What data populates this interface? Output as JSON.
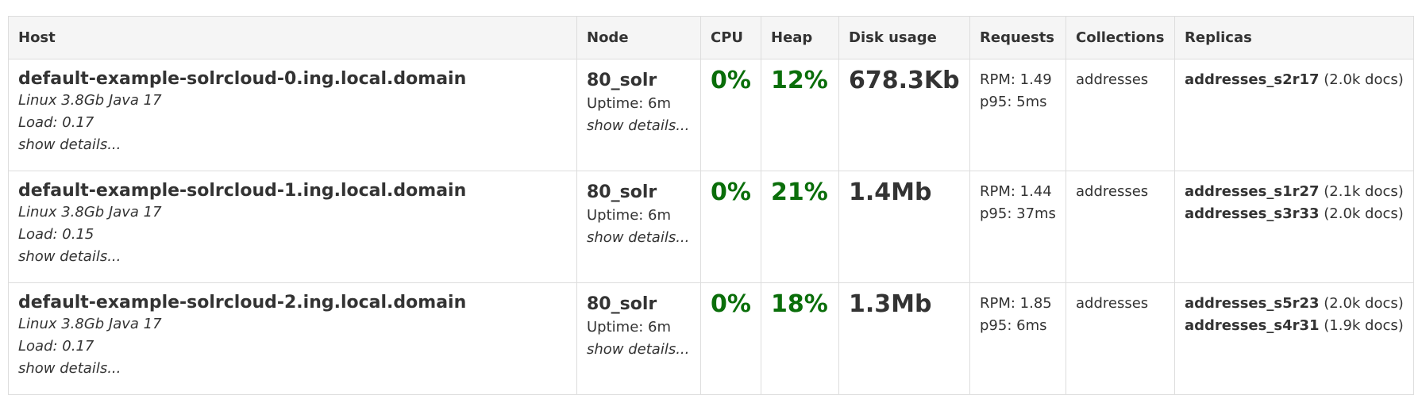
{
  "table": {
    "header": [
      "Host",
      "Node",
      "CPU",
      "Heap",
      "Disk usage",
      "Requests",
      "Collections",
      "Replicas"
    ],
    "rows": [
      {
        "host": "default-example-solrcloud-0.ing.local.domain",
        "host_info": "Linux 3.8Gb Java 17",
        "load": "Load: 0.17",
        "host_details": "show details...",
        "node": "80_solr",
        "uptime": "Uptime: 6m",
        "node_details": "show details...",
        "cpu": "0%",
        "heap": "12%",
        "disk": "678.3Kb",
        "rpm": "RPM: 1.49",
        "p95": "p95: 5ms",
        "collections": "addresses",
        "replicas": [
          {
            "name": "addresses_s2r17",
            "docs": "(2.0k docs)"
          }
        ]
      },
      {
        "host": "default-example-solrcloud-1.ing.local.domain",
        "host_info": "Linux 3.8Gb Java 17",
        "load": "Load: 0.15",
        "host_details": "show details...",
        "node": "80_solr",
        "uptime": "Uptime: 6m",
        "node_details": "show details...",
        "cpu": "0%",
        "heap": "21%",
        "disk": "1.4Mb",
        "rpm": "RPM: 1.44",
        "p95": "p95: 37ms",
        "collections": "addresses",
        "replicas": [
          {
            "name": "addresses_s1r27",
            "docs": "(2.1k docs)"
          },
          {
            "name": "addresses_s3r33",
            "docs": "(2.0k docs)"
          }
        ]
      },
      {
        "host": "default-example-solrcloud-2.ing.local.domain",
        "host_info": "Linux 3.8Gb Java 17",
        "load": "Load: 0.17",
        "host_details": "show details...",
        "node": "80_solr",
        "uptime": "Uptime: 6m",
        "node_details": "show details...",
        "cpu": "0%",
        "heap": "18%",
        "disk": "1.3Mb",
        "rpm": "RPM: 1.85",
        "p95": "p95: 6ms",
        "collections": "addresses",
        "replicas": [
          {
            "name": "addresses_s5r23",
            "docs": "(2.0k docs)"
          },
          {
            "name": "addresses_s4r31",
            "docs": "(1.9k docs)"
          }
        ]
      }
    ]
  }
}
